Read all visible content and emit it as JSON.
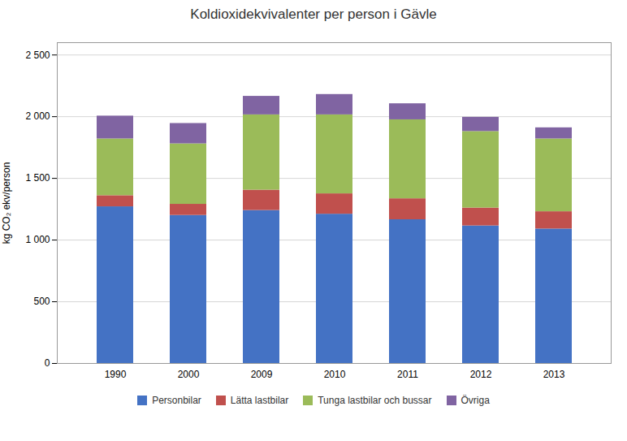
{
  "chart_data": {
    "type": "bar",
    "stacked": true,
    "title": "Koldioxidekvivalenter per person i Gävle",
    "ylabel": "kg CO₂ ekv/person",
    "categories": [
      "1990",
      "2000",
      "2009",
      "2010",
      "2011",
      "2012",
      "2013"
    ],
    "series": [
      {
        "name": "Personbilar",
        "color": "#4472C4",
        "values": [
          1270,
          1200,
          1240,
          1210,
          1165,
          1115,
          1090
        ]
      },
      {
        "name": "Lätta lastbilar",
        "color": "#C0504D",
        "values": [
          90,
          90,
          165,
          165,
          170,
          145,
          140
        ]
      },
      {
        "name": "Tunga lastbilar och bussar",
        "color": "#9BBB59",
        "values": [
          460,
          490,
          610,
          640,
          640,
          620,
          590
        ]
      },
      {
        "name": "Övriga",
        "color": "#8064A2",
        "values": [
          185,
          165,
          150,
          165,
          130,
          115,
          90
        ]
      }
    ],
    "ylim": [
      0,
      2600
    ],
    "yticks": [
      0,
      500,
      {
        "value": 1000,
        "label": "1 000"
      },
      {
        "value": 1500,
        "label": "1 500"
      },
      {
        "value": 2000,
        "label": "2 000"
      },
      {
        "value": 2500,
        "label": "2 500"
      }
    ],
    "grid": true,
    "legend": "bottom"
  }
}
